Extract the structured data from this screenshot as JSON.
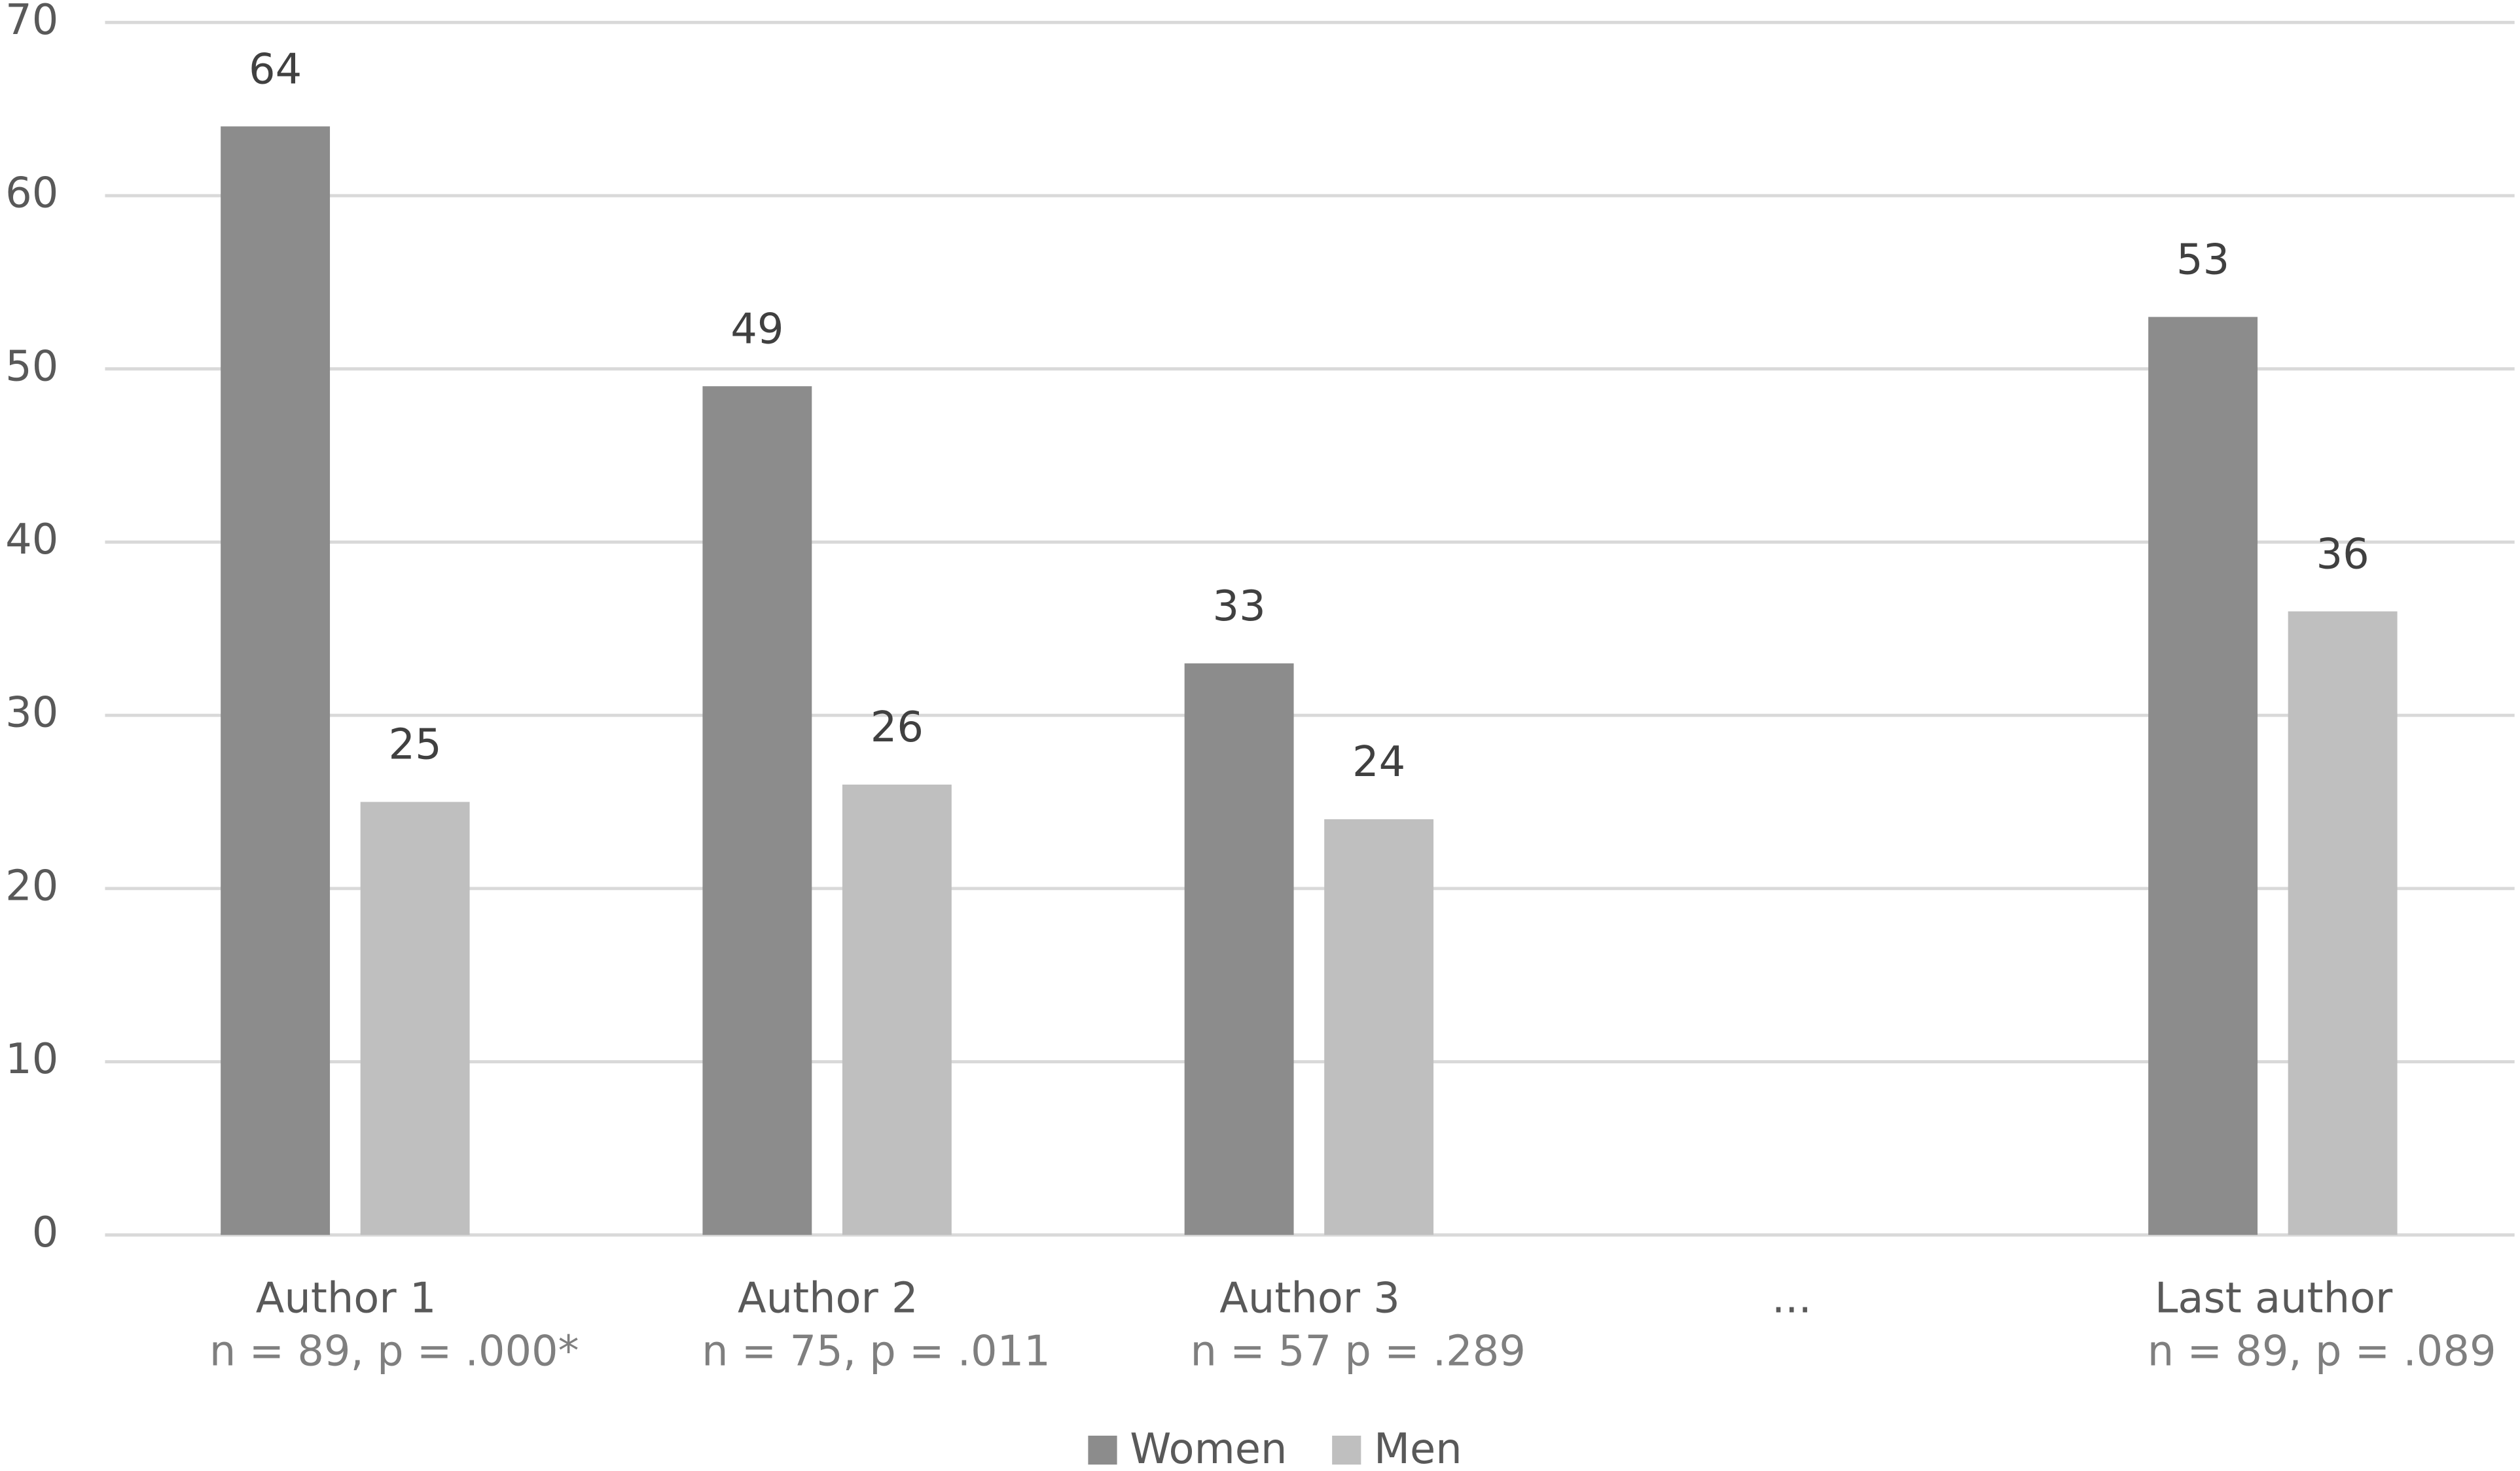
{
  "chart_data": {
    "type": "bar",
    "categories": [
      "Author 1",
      "Author 2",
      "Author 3",
      "...",
      "Last author"
    ],
    "category_notes": [
      "n = 89, p = .000*",
      "n = 75, p = .011",
      "n = 57 p = .289",
      null,
      "n = 89, p = .089"
    ],
    "series": [
      {
        "name": "Women",
        "color": "#8c8c8c",
        "values": [
          64,
          49,
          33,
          null,
          53
        ]
      },
      {
        "name": "Men",
        "color": "#bfbfbf",
        "values": [
          25,
          26,
          24,
          null,
          36
        ]
      }
    ],
    "ylim": [
      0,
      70
    ],
    "yticks": [
      0,
      10,
      20,
      30,
      40,
      50,
      60,
      70
    ],
    "grid": true,
    "legend": "bottom"
  }
}
